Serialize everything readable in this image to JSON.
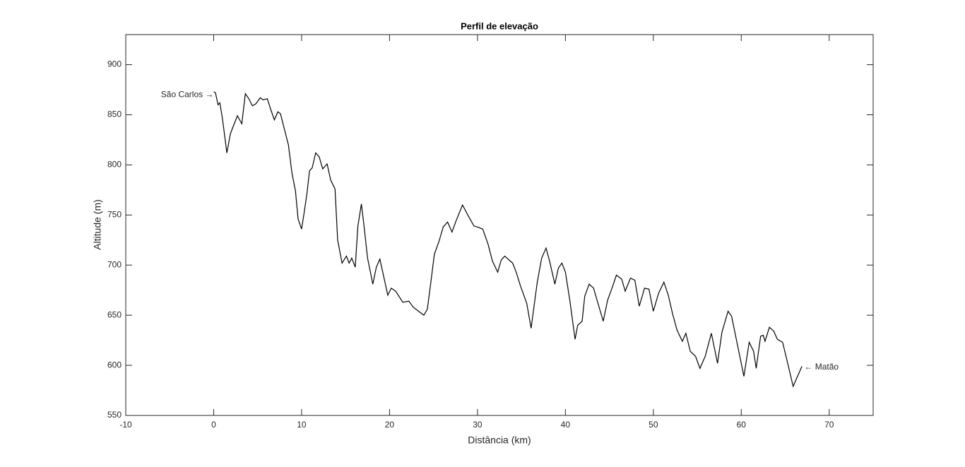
{
  "chart_data": {
    "type": "line",
    "title": "Perfil de elevação",
    "xlabel": "Distância (km)",
    "ylabel": "Altitude (m)",
    "xlim": [
      -10,
      75
    ],
    "xticks": [
      -10,
      0,
      10,
      20,
      30,
      40,
      50,
      60,
      70
    ],
    "ylim": [
      550,
      930
    ],
    "yticks": [
      550,
      600,
      650,
      700,
      750,
      800,
      850,
      900
    ],
    "grid": false,
    "box": true,
    "series": [
      {
        "color": "#000000",
        "x": [
          0,
          0.2,
          0.5,
          0.7,
          1.0,
          1.5,
          1.9,
          2.2,
          2.7,
          3.2,
          3.6,
          4.0,
          4.4,
          4.8,
          5.3,
          5.6,
          6.1,
          6.5,
          6.9,
          7.3,
          7.6,
          8.0,
          8.5,
          8.9,
          9.3,
          9.6,
          10.0,
          10.3,
          10.6,
          10.9,
          11.2,
          11.6,
          12.0,
          12.4,
          12.9,
          13.3,
          13.8,
          14.1,
          14.6,
          15.1,
          15.4,
          15.7,
          16.1,
          16.4,
          16.8,
          17.1,
          17.5,
          18.1,
          18.5,
          18.9,
          19.3,
          19.8,
          20.2,
          20.7,
          21.5,
          22.2,
          22.7,
          23.3,
          23.9,
          24.3,
          24.7,
          25.1,
          25.6,
          26.1,
          26.6,
          27.1,
          27.6,
          28.3,
          28.9,
          29.6,
          30.0,
          30.6,
          31.2,
          31.7,
          32.3,
          32.7,
          33.1,
          33.6,
          34.0,
          34.4,
          34.9,
          35.6,
          36.1,
          36.8,
          37.3,
          37.8,
          38.2,
          38.8,
          39.2,
          39.6,
          40.0,
          40.5,
          41.1,
          41.4,
          41.9,
          42.2,
          42.7,
          43.2,
          43.7,
          44.3,
          44.8,
          45.3,
          45.8,
          46.4,
          46.8,
          47.4,
          47.9,
          48.4,
          49.0,
          49.5,
          50.0,
          50.6,
          51.2,
          51.7,
          52.2,
          52.7,
          53.3,
          53.7,
          54.2,
          54.8,
          55.3,
          55.9,
          56.6,
          57.3,
          57.8,
          58.5,
          58.9,
          59.6,
          60.3,
          60.9,
          61.4,
          61.7,
          62.2,
          62.5,
          62.7,
          63.2,
          63.7,
          64.1,
          64.7,
          65.2,
          65.9,
          66.3,
          66.9
        ],
        "values": [
          873,
          872,
          860,
          862,
          846,
          812,
          831,
          838,
          849,
          841,
          871,
          866,
          859,
          861,
          867,
          865,
          866,
          855,
          845,
          853,
          851,
          837,
          820,
          792,
          774,
          746,
          736,
          753,
          771,
          794,
          797,
          812,
          808,
          796,
          801,
          785,
          776,
          725,
          702,
          709,
          702,
          707,
          698,
          739,
          761,
          739,
          707,
          681,
          698,
          706,
          690,
          670,
          677,
          674,
          663,
          664,
          658,
          654,
          650,
          656,
          683,
          711,
          723,
          738,
          743,
          733,
          745,
          760,
          750,
          739,
          738,
          736,
          721,
          704,
          693,
          705,
          709,
          705,
          702,
          693,
          679,
          662,
          637,
          683,
          707,
          717,
          704,
          681,
          697,
          702,
          693,
          665,
          626,
          640,
          644,
          669,
          681,
          677,
          662,
          644,
          665,
          677,
          690,
          686,
          674,
          687,
          685,
          659,
          677,
          676,
          654,
          672,
          683,
          670,
          651,
          635,
          624,
          632,
          614,
          609,
          597,
          609,
          632,
          602,
          633,
          654,
          649,
          619,
          589,
          623,
          614,
          597,
          629,
          630,
          624,
          638,
          634,
          626,
          623,
          605,
          579,
          587,
          599
        ]
      }
    ],
    "annotations": [
      {
        "text": "São Carlos →",
        "x": 0,
        "y": 870,
        "align": "right"
      },
      {
        "text": "← Matão",
        "x": 67,
        "y": 598,
        "align": "left"
      }
    ]
  }
}
